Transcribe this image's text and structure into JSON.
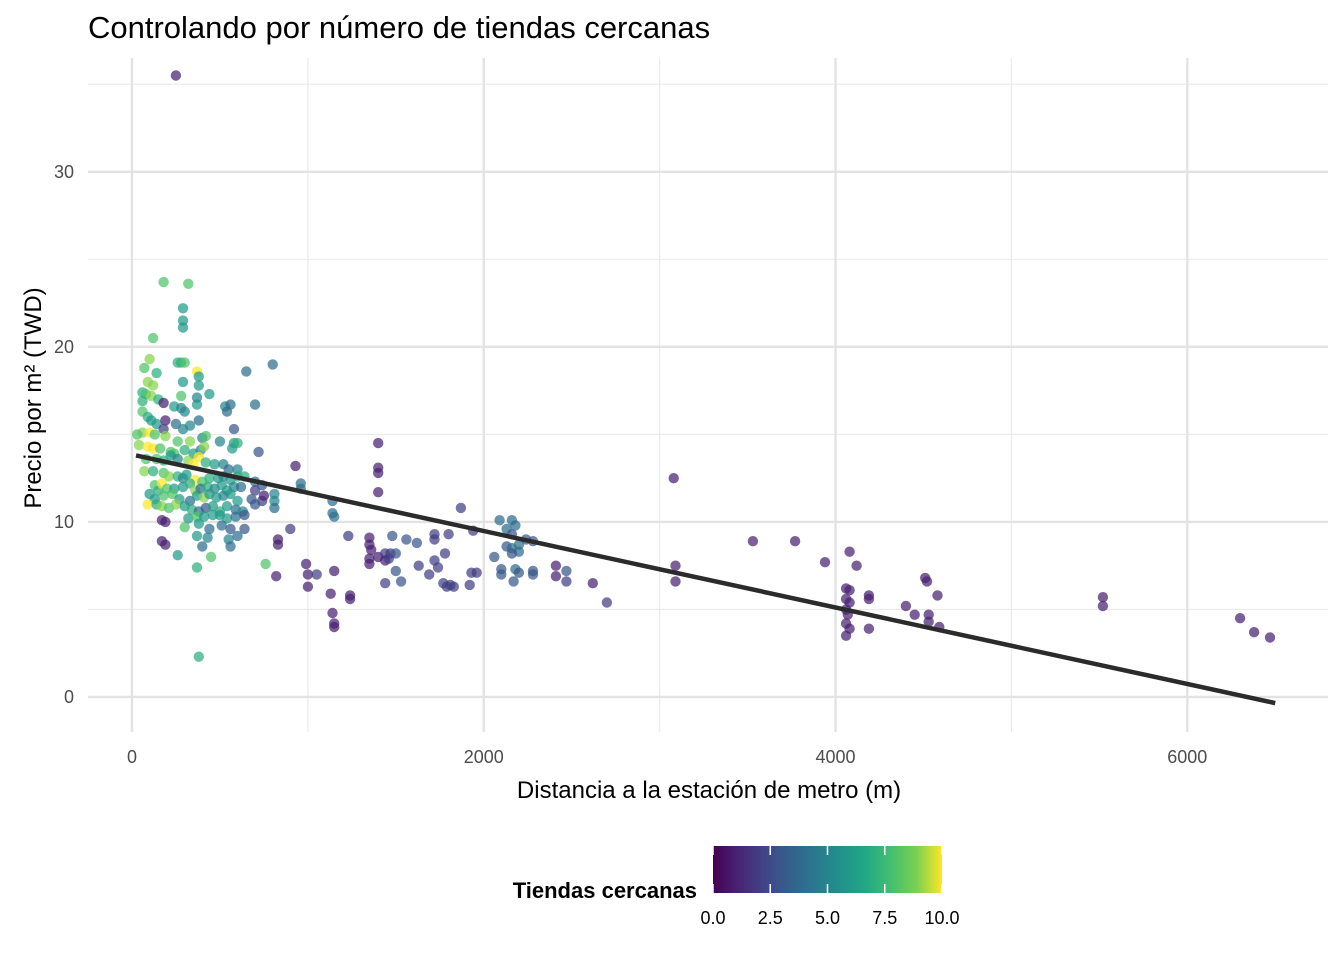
{
  "chart_data": {
    "type": "scatter",
    "title": "Controlando por número de tiendas cercanas",
    "xlabel": "Distancia a la estación de metro (m)",
    "ylabel": "Precio por m² (TWD)",
    "xlim": [
      -250,
      6800
    ],
    "ylim": [
      -2,
      36.5
    ],
    "x_ticks": [
      0,
      2000,
      4000,
      6000
    ],
    "x_tick_labels": [
      "0",
      "2000",
      "4000",
      "6000"
    ],
    "y_ticks": [
      0,
      10,
      20,
      30
    ],
    "y_tick_labels": [
      "0",
      "10",
      "20",
      "30"
    ],
    "grid": true,
    "legend": {
      "title": "Tiendas cercanas",
      "position": "bottom",
      "type": "colorbar",
      "range": [
        0,
        10
      ],
      "ticks": [
        0,
        2.5,
        5,
        7.5,
        10
      ],
      "tick_labels": [
        "0.0",
        "2.5",
        "5.0",
        "7.5",
        "10.0"
      ],
      "colormap": "viridis"
    },
    "trend_line": {
      "x": [
        23,
        6500
      ],
      "y": [
        13.8,
        -0.35
      ],
      "color": "#2b2b2b"
    },
    "points": [
      [
        250,
        35.5,
        1
      ],
      [
        180,
        23.7,
        8
      ],
      [
        320,
        23.6,
        8
      ],
      [
        290,
        22.2,
        6
      ],
      [
        290,
        21.5,
        6
      ],
      [
        290,
        21.1,
        6
      ],
      [
        120,
        20.5,
        8
      ],
      [
        100,
        19.3,
        9
      ],
      [
        260,
        19.1,
        7
      ],
      [
        280,
        19.1,
        7
      ],
      [
        300,
        19.1,
        8
      ],
      [
        70,
        18.8,
        8
      ],
      [
        370,
        18.6,
        10
      ],
      [
        380,
        18.3,
        6
      ],
      [
        140,
        18.5,
        7
      ],
      [
        800,
        19.0,
        4
      ],
      [
        650,
        18.6,
        4
      ],
      [
        90,
        18.0,
        9
      ],
      [
        120,
        17.8,
        9
      ],
      [
        290,
        18.0,
        6
      ],
      [
        380,
        17.8,
        6
      ],
      [
        60,
        17.4,
        7
      ],
      [
        80,
        17.3,
        8
      ],
      [
        110,
        17.2,
        9
      ],
      [
        150,
        17.0,
        7
      ],
      [
        280,
        17.2,
        8
      ],
      [
        440,
        17.3,
        6
      ],
      [
        700,
        16.7,
        4
      ],
      [
        60,
        16.9,
        7
      ],
      [
        180,
        16.8,
        1
      ],
      [
        240,
        16.6,
        6
      ],
      [
        280,
        16.5,
        5
      ],
      [
        300,
        16.3,
        5
      ],
      [
        370,
        16.7,
        6
      ],
      [
        370,
        17.1,
        5
      ],
      [
        530,
        16.6,
        5
      ],
      [
        540,
        16.3,
        4
      ],
      [
        560,
        16.7,
        4
      ],
      [
        60,
        16.3,
        8
      ],
      [
        90,
        16.0,
        7
      ],
      [
        110,
        15.8,
        6
      ],
      [
        140,
        15.6,
        6
      ],
      [
        190,
        15.8,
        1
      ],
      [
        250,
        15.6,
        4
      ],
      [
        290,
        15.3,
        5
      ],
      [
        330,
        15.5,
        5
      ],
      [
        380,
        15.8,
        4
      ],
      [
        580,
        15.3,
        3
      ],
      [
        60,
        15.1,
        9
      ],
      [
        100,
        15.1,
        10
      ],
      [
        130,
        15.0,
        8
      ],
      [
        180,
        15.3,
        2
      ],
      [
        190,
        14.9,
        9
      ],
      [
        260,
        14.6,
        8
      ],
      [
        330,
        14.6,
        9
      ],
      [
        400,
        14.8,
        5
      ],
      [
        420,
        14.9,
        8
      ],
      [
        500,
        14.6,
        5
      ],
      [
        580,
        14.5,
        6
      ],
      [
        720,
        14.0,
        3
      ],
      [
        30,
        15.0,
        8
      ],
      [
        40,
        14.4,
        9
      ],
      [
        90,
        14.3,
        10
      ],
      [
        120,
        14.2,
        10
      ],
      [
        160,
        14.2,
        8
      ],
      [
        220,
        14.0,
        8
      ],
      [
        240,
        13.9,
        8
      ],
      [
        300,
        14.1,
        7
      ],
      [
        350,
        13.9,
        6
      ],
      [
        390,
        14.1,
        5
      ],
      [
        410,
        14.3,
        9
      ],
      [
        570,
        14.2,
        6
      ],
      [
        600,
        14.5,
        7
      ],
      [
        1400,
        14.5,
        1
      ],
      [
        80,
        13.6,
        8
      ],
      [
        140,
        13.6,
        8
      ],
      [
        180,
        13.5,
        7
      ],
      [
        220,
        13.8,
        6
      ],
      [
        260,
        13.6,
        5
      ],
      [
        320,
        13.5,
        9
      ],
      [
        350,
        13.3,
        10
      ],
      [
        380,
        13.7,
        10
      ],
      [
        420,
        13.4,
        7
      ],
      [
        470,
        13.3,
        6
      ],
      [
        520,
        13.3,
        5
      ],
      [
        550,
        13.0,
        4
      ],
      [
        600,
        13.0,
        5
      ],
      [
        70,
        12.9,
        9
      ],
      [
        120,
        12.9,
        7
      ],
      [
        180,
        12.8,
        8
      ],
      [
        210,
        12.6,
        9
      ],
      [
        260,
        12.6,
        7
      ],
      [
        290,
        12.5,
        5
      ],
      [
        310,
        12.7,
        6
      ],
      [
        360,
        12.4,
        10
      ],
      [
        400,
        12.3,
        8
      ],
      [
        440,
        12.5,
        7
      ],
      [
        490,
        12.5,
        6
      ],
      [
        520,
        12.6,
        5
      ],
      [
        560,
        12.4,
        6
      ],
      [
        600,
        12.6,
        7
      ],
      [
        640,
        12.6,
        7
      ],
      [
        700,
        12.3,
        4
      ],
      [
        930,
        13.2,
        1
      ],
      [
        1400,
        13.1,
        1
      ],
      [
        1400,
        12.8,
        1
      ],
      [
        130,
        12.1,
        8
      ],
      [
        150,
        11.8,
        7
      ],
      [
        170,
        12.2,
        10
      ],
      [
        200,
        11.9,
        8
      ],
      [
        240,
        11.9,
        6
      ],
      [
        290,
        12.0,
        6
      ],
      [
        330,
        12.2,
        7
      ],
      [
        360,
        11.8,
        9
      ],
      [
        390,
        11.9,
        4
      ],
      [
        430,
        12.0,
        7
      ],
      [
        470,
        11.9,
        5
      ],
      [
        510,
        12.1,
        6
      ],
      [
        540,
        11.8,
        6
      ],
      [
        580,
        12.0,
        5
      ],
      [
        620,
        12.0,
        4
      ],
      [
        700,
        11.8,
        2
      ],
      [
        740,
        12.1,
        3
      ],
      [
        960,
        12.2,
        4
      ],
      [
        960,
        11.9,
        4
      ],
      [
        100,
        11.6,
        6
      ],
      [
        130,
        11.3,
        6
      ],
      [
        180,
        11.5,
        8
      ],
      [
        230,
        11.6,
        8
      ],
      [
        270,
        11.3,
        6
      ],
      [
        330,
        11.2,
        4
      ],
      [
        370,
        11.5,
        6
      ],
      [
        410,
        11.4,
        9
      ],
      [
        440,
        11.6,
        6
      ],
      [
        480,
        11.4,
        6
      ],
      [
        520,
        11.5,
        5
      ],
      [
        560,
        11.6,
        6
      ],
      [
        600,
        11.2,
        6
      ],
      [
        680,
        11.3,
        3
      ],
      [
        740,
        11.2,
        2
      ],
      [
        750,
        11.5,
        1
      ],
      [
        810,
        11.6,
        5
      ],
      [
        810,
        11.2,
        5
      ],
      [
        1400,
        11.7,
        1
      ],
      [
        1140,
        11.2,
        4
      ],
      [
        3080,
        12.5,
        1
      ],
      [
        90,
        11.0,
        10
      ],
      [
        140,
        11.0,
        7
      ],
      [
        170,
        10.9,
        9
      ],
      [
        210,
        10.8,
        8
      ],
      [
        250,
        11.0,
        9
      ],
      [
        300,
        10.9,
        6
      ],
      [
        340,
        10.7,
        7
      ],
      [
        380,
        10.6,
        4
      ],
      [
        420,
        10.8,
        3
      ],
      [
        460,
        10.9,
        6
      ],
      [
        500,
        10.6,
        7
      ],
      [
        540,
        10.9,
        6
      ],
      [
        590,
        10.7,
        4
      ],
      [
        630,
        10.6,
        5
      ],
      [
        700,
        11.0,
        3
      ],
      [
        810,
        10.8,
        4
      ],
      [
        1140,
        10.5,
        4
      ],
      [
        1870,
        10.8,
        2
      ],
      [
        170,
        10.1,
        1
      ],
      [
        190,
        10.0,
        1
      ],
      [
        320,
        10.2,
        6
      ],
      [
        370,
        10.3,
        8
      ],
      [
        410,
        10.3,
        6
      ],
      [
        460,
        10.4,
        6
      ],
      [
        500,
        10.4,
        6
      ],
      [
        540,
        10.2,
        6
      ],
      [
        590,
        10.3,
        4
      ],
      [
        640,
        10.4,
        3
      ],
      [
        1150,
        10.3,
        4
      ],
      [
        2090,
        10.1,
        4
      ],
      [
        2160,
        10.1,
        4
      ],
      [
        2130,
        9.6,
        4
      ],
      [
        2180,
        9.8,
        4
      ],
      [
        300,
        9.7,
        8
      ],
      [
        380,
        9.9,
        6
      ],
      [
        440,
        9.6,
        4
      ],
      [
        510,
        9.8,
        4
      ],
      [
        560,
        9.6,
        3
      ],
      [
        640,
        9.6,
        3
      ],
      [
        900,
        9.6,
        2
      ],
      [
        1940,
        9.5,
        2
      ],
      [
        2160,
        9.3,
        3
      ],
      [
        370,
        9.2,
        6
      ],
      [
        430,
        9.1,
        5
      ],
      [
        550,
        9.0,
        5
      ],
      [
        600,
        9.2,
        4
      ],
      [
        830,
        9.0,
        1
      ],
      [
        1230,
        9.2,
        2
      ],
      [
        1350,
        9.1,
        1
      ],
      [
        1720,
        9.3,
        2
      ],
      [
        1720,
        9.0,
        2
      ],
      [
        1800,
        9.3,
        2
      ],
      [
        1480,
        9.2,
        3
      ],
      [
        1560,
        9.0,
        3
      ],
      [
        2240,
        9.0,
        3
      ],
      [
        2280,
        8.9,
        3
      ],
      [
        3530,
        8.9,
        1
      ],
      [
        3770,
        8.9,
        1
      ],
      [
        170,
        8.9,
        1
      ],
      [
        190,
        8.7,
        1
      ],
      [
        400,
        8.6,
        4
      ],
      [
        560,
        8.6,
        4
      ],
      [
        830,
        8.7,
        1
      ],
      [
        1350,
        8.7,
        1
      ],
      [
        1360,
        8.4,
        1
      ],
      [
        1620,
        8.8,
        3
      ],
      [
        2130,
        8.6,
        3
      ],
      [
        2160,
        8.5,
        4
      ],
      [
        2200,
        8.7,
        4
      ],
      [
        2200,
        8.3,
        4
      ],
      [
        1400,
        8.0,
        1
      ],
      [
        1440,
        8.2,
        2
      ],
      [
        1470,
        8.2,
        2
      ],
      [
        1500,
        8.2,
        3
      ],
      [
        1780,
        8.2,
        2
      ],
      [
        2160,
        8.2,
        3
      ],
      [
        2060,
        8.0,
        3
      ],
      [
        4080,
        8.3,
        1
      ],
      [
        260,
        8.1,
        6
      ],
      [
        450,
        8.0,
        8
      ],
      [
        1350,
        7.9,
        1
      ],
      [
        1350,
        7.6,
        1
      ],
      [
        1440,
        7.8,
        1
      ],
      [
        1460,
        7.9,
        2
      ],
      [
        1720,
        7.8,
        2
      ],
      [
        1740,
        7.4,
        2
      ],
      [
        2100,
        7.3,
        3
      ],
      [
        3940,
        7.7,
        1
      ],
      [
        4120,
        7.5,
        1
      ],
      [
        3090,
        7.5,
        1
      ],
      [
        2410,
        7.5,
        1
      ],
      [
        370,
        7.4,
        7
      ],
      [
        760,
        7.6,
        8
      ],
      [
        990,
        7.6,
        1
      ],
      [
        1150,
        7.2,
        1
      ],
      [
        1500,
        7.2,
        3
      ],
      [
        1630,
        7.5,
        2
      ],
      [
        1690,
        7.0,
        2
      ],
      [
        1930,
        7.1,
        2
      ],
      [
        1960,
        7.1,
        2
      ],
      [
        2100,
        7.0,
        3
      ],
      [
        2180,
        7.3,
        4
      ],
      [
        2200,
        7.1,
        3
      ],
      [
        2280,
        7.2,
        3
      ],
      [
        2280,
        7.0,
        3
      ],
      [
        2470,
        7.2,
        3
      ],
      [
        820,
        6.9,
        1
      ],
      [
        1000,
        7.0,
        1
      ],
      [
        1050,
        7.0,
        2
      ],
      [
        1440,
        6.5,
        2
      ],
      [
        1530,
        6.6,
        3
      ],
      [
        1770,
        6.5,
        2
      ],
      [
        1790,
        6.3,
        2
      ],
      [
        1810,
        6.4,
        2
      ],
      [
        1830,
        6.3,
        2
      ],
      [
        1920,
        6.4,
        2
      ],
      [
        2170,
        6.6,
        3
      ],
      [
        2410,
        6.9,
        1
      ],
      [
        2470,
        6.6,
        2
      ],
      [
        2620,
        6.5,
        1
      ],
      [
        3090,
        6.6,
        1
      ],
      [
        4510,
        6.8,
        1
      ],
      [
        4520,
        6.6,
        1
      ],
      [
        1000,
        6.3,
        1
      ],
      [
        4060,
        6.2,
        1
      ],
      [
        4080,
        6.1,
        1
      ],
      [
        4060,
        5.6,
        1
      ],
      [
        4080,
        5.4,
        1
      ],
      [
        4060,
        5.0,
        1
      ],
      [
        4190,
        5.8,
        1
      ],
      [
        4190,
        5.6,
        1
      ],
      [
        4580,
        5.8,
        1
      ],
      [
        5520,
        5.7,
        1
      ],
      [
        5520,
        5.2,
        1
      ],
      [
        1130,
        5.9,
        1
      ],
      [
        1240,
        5.8,
        1
      ],
      [
        1240,
        5.6,
        1
      ],
      [
        2700,
        5.4,
        2
      ],
      [
        4400,
        5.2,
        1
      ],
      [
        4070,
        4.7,
        1
      ],
      [
        4450,
        4.7,
        1
      ],
      [
        4530,
        4.7,
        1
      ],
      [
        4530,
        4.3,
        1
      ],
      [
        4590,
        4.0,
        1
      ],
      [
        6300,
        4.5,
        1
      ],
      [
        1140,
        4.8,
        1
      ],
      [
        1150,
        4.2,
        1
      ],
      [
        1150,
        4.0,
        1
      ],
      [
        4060,
        4.2,
        1
      ],
      [
        4080,
        3.9,
        1
      ],
      [
        4060,
        3.5,
        1
      ],
      [
        4190,
        3.9,
        1
      ],
      [
        6380,
        3.7,
        1
      ],
      [
        6470,
        3.4,
        1
      ],
      [
        380,
        2.3,
        7
      ]
    ]
  }
}
